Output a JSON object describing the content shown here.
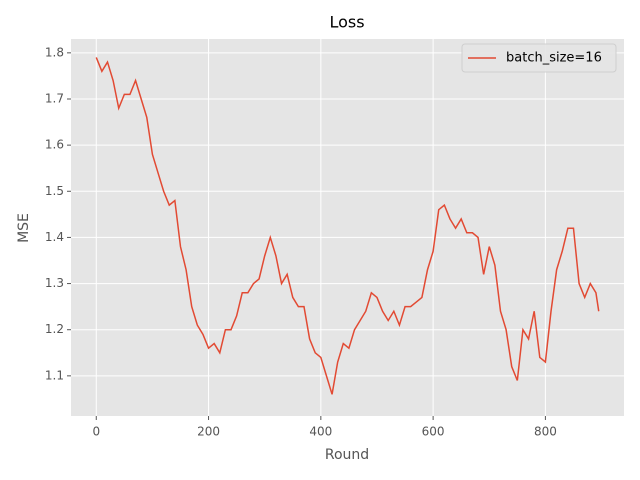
{
  "chart_data": {
    "type": "line",
    "title": "Loss",
    "x_label": "Round",
    "y_label": "MSE",
    "x": [
      0,
      10,
      20,
      30,
      40,
      50,
      60,
      70,
      80,
      90,
      100,
      110,
      120,
      130,
      140,
      150,
      160,
      170,
      180,
      190,
      200,
      210,
      220,
      230,
      240,
      250,
      260,
      270,
      280,
      290,
      300,
      310,
      320,
      330,
      340,
      350,
      360,
      370,
      380,
      390,
      400,
      410,
      420,
      430,
      440,
      450,
      460,
      470,
      480,
      490,
      500,
      510,
      520,
      530,
      540,
      550,
      560,
      570,
      580,
      590,
      600,
      610,
      620,
      630,
      640,
      650,
      660,
      670,
      680,
      690,
      700,
      710,
      720,
      730,
      740,
      750,
      760,
      770,
      780,
      790,
      800,
      810,
      820,
      830,
      840,
      850,
      860,
      870,
      880,
      890,
      895
    ],
    "series": [
      {
        "name": "batch_size=16",
        "color": "#E24A33",
        "values": [
          1.79,
          1.76,
          1.78,
          1.74,
          1.68,
          1.71,
          1.71,
          1.74,
          1.7,
          1.66,
          1.58,
          1.54,
          1.5,
          1.47,
          1.48,
          1.38,
          1.33,
          1.25,
          1.21,
          1.19,
          1.16,
          1.17,
          1.15,
          1.2,
          1.2,
          1.23,
          1.28,
          1.28,
          1.3,
          1.31,
          1.36,
          1.4,
          1.36,
          1.3,
          1.32,
          1.27,
          1.25,
          1.25,
          1.18,
          1.15,
          1.14,
          1.1,
          1.06,
          1.13,
          1.17,
          1.16,
          1.2,
          1.22,
          1.24,
          1.28,
          1.27,
          1.24,
          1.22,
          1.24,
          1.21,
          1.25,
          1.25,
          1.26,
          1.27,
          1.33,
          1.37,
          1.46,
          1.47,
          1.44,
          1.42,
          1.44,
          1.41,
          1.41,
          1.4,
          1.32,
          1.38,
          1.34,
          1.24,
          1.2,
          1.12,
          1.09,
          1.2,
          1.18,
          1.24,
          1.14,
          1.13,
          1.24,
          1.33,
          1.37,
          1.42,
          1.42,
          1.3,
          1.27,
          1.3,
          1.28,
          1.24
        ]
      }
    ],
    "xlim": [
      -45,
      940
    ],
    "ylim": [
      1.013,
      1.83
    ],
    "xticks": [
      0,
      200,
      400,
      600,
      800
    ],
    "yticks": [
      1.1,
      1.2,
      1.3,
      1.4,
      1.5,
      1.6,
      1.7,
      1.8
    ],
    "grid": true,
    "legend": "upper right"
  }
}
